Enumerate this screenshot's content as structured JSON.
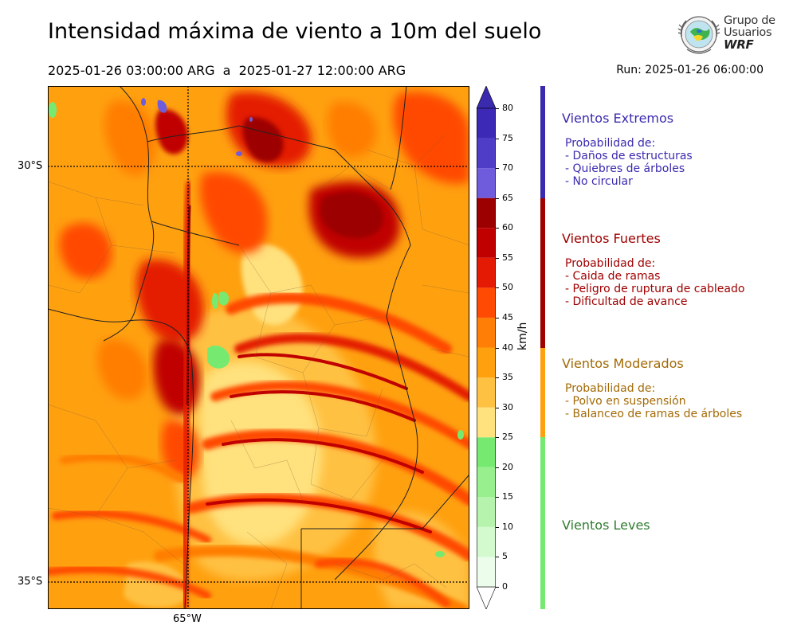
{
  "header": {
    "title": "Intensidad máxima de viento a 10m del suelo",
    "period": "2025-01-26 03:00:00 ARG  a  2025-01-27 12:00:00 ARG",
    "run": "Run: 2025-01-26 06:00:00"
  },
  "logo": {
    "line1": "Grupo de",
    "line2": "Usuarios",
    "line3": "WRF"
  },
  "map": {
    "lat_labels": [
      "30°S",
      "35°S"
    ],
    "lon_labels": [
      "65°W"
    ]
  },
  "colorbar": {
    "unit": "km/h",
    "ticks": [
      "0",
      "5",
      "10",
      "15",
      "20",
      "25",
      "30",
      "35",
      "40",
      "45",
      "50",
      "55",
      "60",
      "65",
      "70",
      "75",
      "80"
    ],
    "bins": [
      {
        "from": 0,
        "to": 5,
        "color": "#ecfdec"
      },
      {
        "from": 5,
        "to": 10,
        "color": "#d3f9cf"
      },
      {
        "from": 10,
        "to": 15,
        "color": "#b6f3ad"
      },
      {
        "from": 15,
        "to": 20,
        "color": "#98ef8e"
      },
      {
        "from": 20,
        "to": 25,
        "color": "#76ea70"
      },
      {
        "from": 25,
        "to": 30,
        "color": "#ffe17d"
      },
      {
        "from": 30,
        "to": 35,
        "color": "#ffc142"
      },
      {
        "from": 35,
        "to": 40,
        "color": "#ffa00f"
      },
      {
        "from": 40,
        "to": 45,
        "color": "#ff7e06"
      },
      {
        "from": 45,
        "to": 50,
        "color": "#ff4a03"
      },
      {
        "from": 50,
        "to": 55,
        "color": "#e41a04"
      },
      {
        "from": 55,
        "to": 60,
        "color": "#c00000"
      },
      {
        "from": 60,
        "to": 65,
        "color": "#9c0000"
      },
      {
        "from": 65,
        "to": 70,
        "color": "#6e5cdc"
      },
      {
        "from": 70,
        "to": 75,
        "color": "#4f3dc8"
      },
      {
        "from": 75,
        "to": 80,
        "color": "#3c29b6"
      }
    ],
    "under_color": "#ffffff",
    "over_color": "#3a2aae"
  },
  "categories": [
    {
      "key": "extremos",
      "title": "Vientos Extremos",
      "color": "#3a2aae",
      "bar_color": "#3a2aae",
      "from": 65,
      "to": 85,
      "heading": "Probabilidad de:",
      "items": [
        "- Daños de estructuras",
        "- Quiebres de árboles",
        "- No circular"
      ]
    },
    {
      "key": "fuertes",
      "title": "Vientos Fuertes",
      "color": "#a00000",
      "bar_color": "#a00000",
      "from": 40,
      "to": 65,
      "heading": "Probabilidad de:",
      "items": [
        "- Caida de ramas",
        "- Peligro de ruptura de cableado",
        "- Dificultad de avance"
      ]
    },
    {
      "key": "moderados",
      "title": "Vientos Moderados",
      "color": "#a36a05",
      "bar_color": "#ffa00f",
      "from": 25,
      "to": 40,
      "heading": "Probabilidad de:",
      "items": [
        "- Polvo en suspensión",
        "- Balanceo de ramas de árboles"
      ]
    },
    {
      "key": "leves",
      "title": "Vientos Leves",
      "color": "#2f7d2f",
      "bar_color": "#76ea70",
      "from": -5,
      "to": 25,
      "heading": "",
      "items": []
    }
  ]
}
